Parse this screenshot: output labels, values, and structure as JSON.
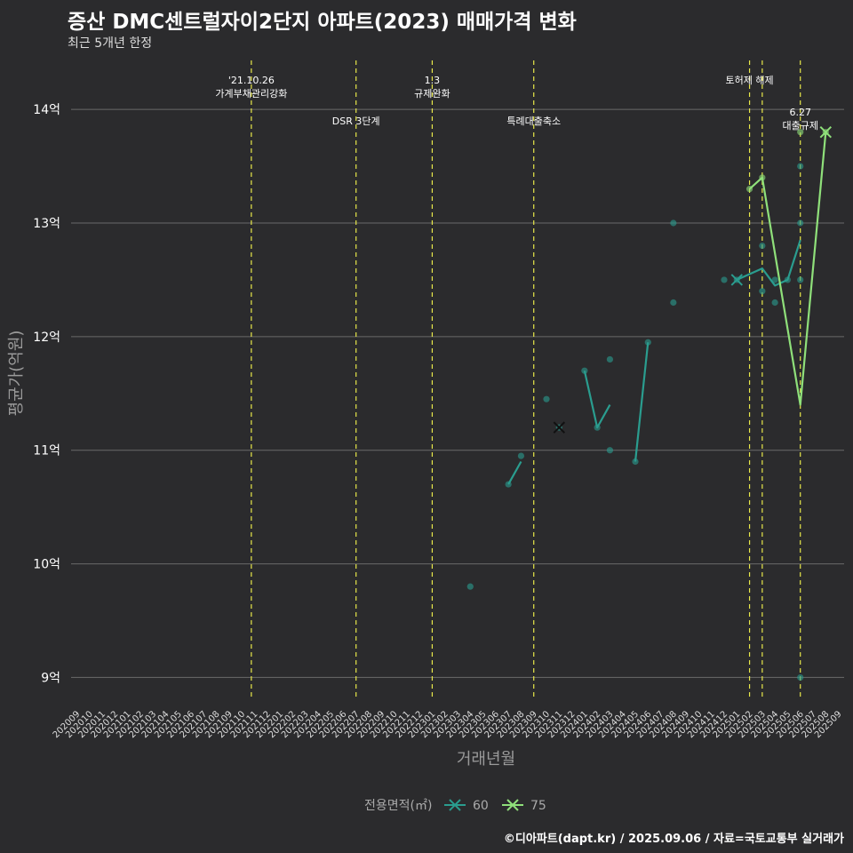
{
  "header": {
    "title": "증산 DMC센트럴자이2단지 아파트(2023) 매매가격 변화",
    "subtitle": "최근 5개년 한정"
  },
  "caption": "©디아파트(dapt.kr) / 2025.09.06 / 자료=국토교통부 실거래가",
  "colors": {
    "background": "#2b2b2d",
    "series60": "#2a9d8f",
    "series75": "#8fe07a",
    "eventLine": "#e8e84a",
    "grid": "#6a6a6a"
  },
  "chart_data": {
    "type": "line",
    "title": "증산 DMC센트럴자이2단지 아파트(2023) 매매가격 변화",
    "xlabel": "거래년월",
    "ylabel": "평균가(억원)",
    "ylim": [
      8.8,
      14.4
    ],
    "yticks": [
      9,
      10,
      11,
      12,
      13,
      14
    ],
    "ytick_labels": [
      "9억",
      "10억",
      "11억",
      "12억",
      "13억",
      "14억"
    ],
    "months": [
      "202009",
      "202010",
      "202011",
      "202012",
      "202101",
      "202102",
      "202103",
      "202104",
      "202105",
      "202106",
      "202107",
      "202108",
      "202109",
      "202110",
      "202111",
      "202112",
      "202201",
      "202202",
      "202203",
      "202204",
      "202205",
      "202206",
      "202207",
      "202208",
      "202209",
      "202210",
      "202211",
      "202212",
      "202301",
      "202302",
      "202303",
      "202304",
      "202305",
      "202306",
      "202307",
      "202308",
      "202309",
      "202310",
      "202311",
      "202312",
      "202401",
      "202402",
      "202403",
      "202404",
      "202405",
      "202406",
      "202407",
      "202408",
      "202409",
      "202410",
      "202411",
      "202412",
      "202501",
      "202502",
      "202503",
      "202504",
      "202505",
      "202506",
      "202507",
      "202508",
      "202509"
    ],
    "legend_title": "전용면적(㎡)",
    "series": [
      {
        "name": "60",
        "line_segments": [
          [
            [
              "202307",
              10.7
            ],
            [
              "202308",
              10.9
            ]
          ],
          [
            [
              "202401",
              11.7
            ],
            [
              "202402",
              11.2
            ],
            [
              "202403",
              11.4
            ]
          ],
          [
            [
              "202405",
              10.9
            ],
            [
              "202406",
              11.95
            ]
          ],
          [
            [
              "202501",
              12.5
            ],
            [
              "202503",
              12.6
            ],
            [
              "202504",
              12.45
            ],
            [
              "202505",
              12.5
            ],
            [
              "202506",
              12.85
            ]
          ]
        ],
        "points": [
          [
            "202304",
            9.8
          ],
          [
            "202307",
            10.7
          ],
          [
            "202308",
            10.95
          ],
          [
            "202310",
            11.45
          ],
          [
            "202311",
            11.2
          ],
          [
            "202401",
            11.7
          ],
          [
            "202402",
            11.2
          ],
          [
            "202403",
            11.8
          ],
          [
            "202403",
            11.0
          ],
          [
            "202405",
            10.9
          ],
          [
            "202406",
            11.95
          ],
          [
            "202408",
            13.0
          ],
          [
            "202408",
            12.3
          ],
          [
            "202412",
            12.5
          ],
          [
            "202501",
            12.5
          ],
          [
            "202503",
            12.8
          ],
          [
            "202503",
            12.4
          ],
          [
            "202504",
            12.5
          ],
          [
            "202504",
            12.3
          ],
          [
            "202505",
            12.5
          ],
          [
            "202506",
            13.0
          ],
          [
            "202506",
            13.5
          ],
          [
            "202506",
            12.5
          ],
          [
            "202506",
            9.0
          ]
        ],
        "x_markers": [
          [
            "202311",
            11.2
          ],
          [
            "202501",
            12.5
          ]
        ]
      },
      {
        "name": "75",
        "line_segments": [
          [
            [
              "202502",
              13.3
            ],
            [
              "202503",
              13.4
            ],
            [
              "202506",
              11.4
            ],
            [
              "202508",
              13.8
            ]
          ]
        ],
        "points": [
          [
            "202502",
            13.3
          ],
          [
            "202503",
            13.4
          ],
          [
            "202506",
            13.8
          ],
          [
            "202508",
            13.8
          ]
        ],
        "x_markers": [
          [
            "202508",
            13.8
          ]
        ]
      }
    ],
    "events": [
      {
        "month": "202110",
        "frac": 0.75,
        "label": "'21.10.26\n가계부채관리강화",
        "row": 1
      },
      {
        "month": "202207",
        "frac": 0.0,
        "label": "DSR 3단계",
        "row": 2
      },
      {
        "month": "202301",
        "frac": 0.0,
        "label": "1.3\n규제완화",
        "row": 1
      },
      {
        "month": "202309",
        "frac": 0.0,
        "label": "특례대출축소",
        "row": 2
      },
      {
        "month": "202502",
        "frac": 0.0,
        "label": "토허제 해제",
        "row": 1
      },
      {
        "month": "202503",
        "frac": 0.0,
        "label": "",
        "row": 1
      },
      {
        "month": "202506",
        "frac": 0.0,
        "label": "6.27\n대출규제",
        "row": 3
      }
    ]
  }
}
